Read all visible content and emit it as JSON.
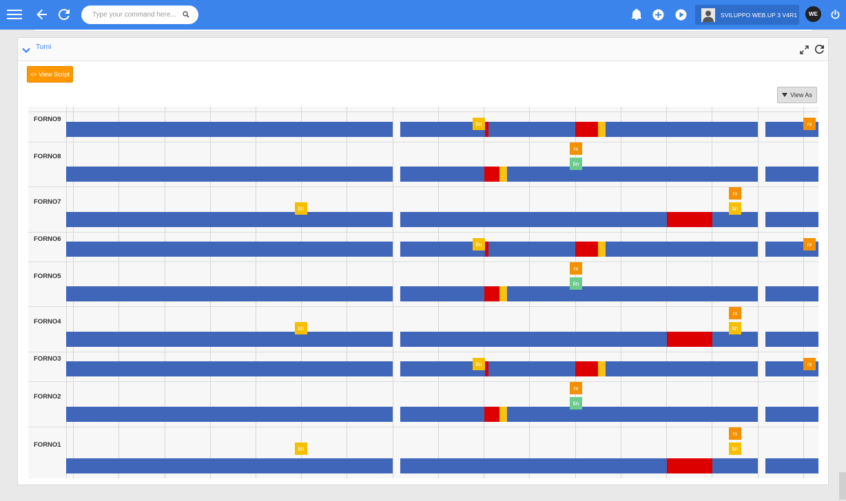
{
  "topbar": {
    "search_placeholder": "Type your command here...",
    "user_label": "SVILUPPO WEB.UP 3 V4R1",
    "avatar_initials": "WE"
  },
  "panel": {
    "title": "Turni",
    "view_script_label": "View Script",
    "view_as_label": "View As"
  },
  "gantt": {
    "rows": [
      {
        "label": "FORNO9"
      },
      {
        "label": "FORNO8"
      },
      {
        "label": "FORNO7"
      },
      {
        "label": "FORNO6"
      },
      {
        "label": "FORNO5"
      },
      {
        "label": "FORNO4"
      },
      {
        "label": "FORNO3"
      },
      {
        "label": "FORNO2"
      },
      {
        "label": "FORNO1"
      }
    ],
    "tag_labels": {
      "lin": "lin",
      "rx": "rx"
    }
  },
  "colors": {
    "accent": "#3b84ec",
    "bar": "#4066b9",
    "alarm": "#dd0000",
    "warning": "#f7c215",
    "orange": "#ff9800",
    "green": "#6ccc8e"
  }
}
